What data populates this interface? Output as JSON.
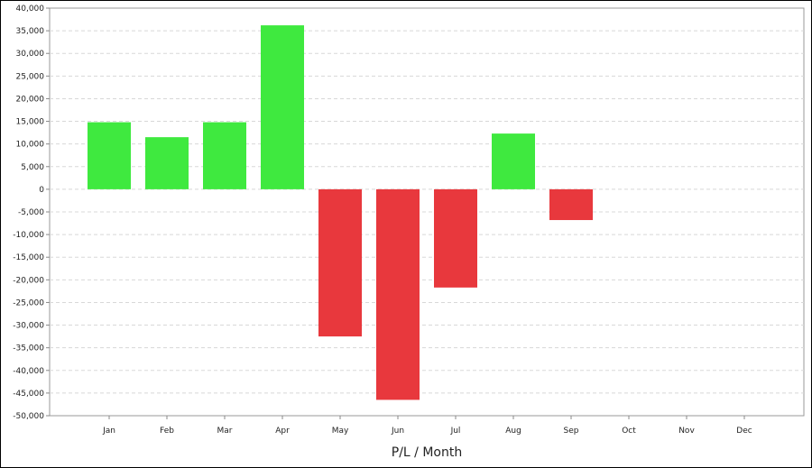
{
  "chart_data": {
    "type": "bar",
    "title": "",
    "xlabel": "P/L / Month",
    "ylabel": "",
    "categories": [
      "Jan",
      "Feb",
      "Mar",
      "Apr",
      "May",
      "Jun",
      "Jul",
      "Aug",
      "Sep",
      "Oct",
      "Nov",
      "Dec"
    ],
    "values": [
      14800,
      11500,
      14800,
      36200,
      -32500,
      -46500,
      -21700,
      12300,
      -6800,
      null,
      null,
      null
    ],
    "ylim": [
      -50000,
      40000
    ],
    "yticks": [
      40000,
      35000,
      30000,
      25000,
      20000,
      15000,
      10000,
      5000,
      0,
      -5000,
      -10000,
      -15000,
      -20000,
      -25000,
      -30000,
      -35000,
      -40000,
      -45000,
      -50000
    ],
    "ytick_labels": [
      "40,000",
      "35,000",
      "30,000",
      "25,000",
      "20,000",
      "15,000",
      "10,000",
      "5,000",
      "0",
      "-5,000",
      "-10,000",
      "-15,000",
      "-20,000",
      "-25,000",
      "-30,000",
      "-35,000",
      "-40,000",
      "-45,000",
      "-50,000"
    ],
    "grid": true,
    "legend": "none",
    "colors": {
      "positive": "#3fe93f",
      "negative": "#e8383d",
      "grid": "#d8d8d8",
      "axis": "#888888"
    }
  }
}
